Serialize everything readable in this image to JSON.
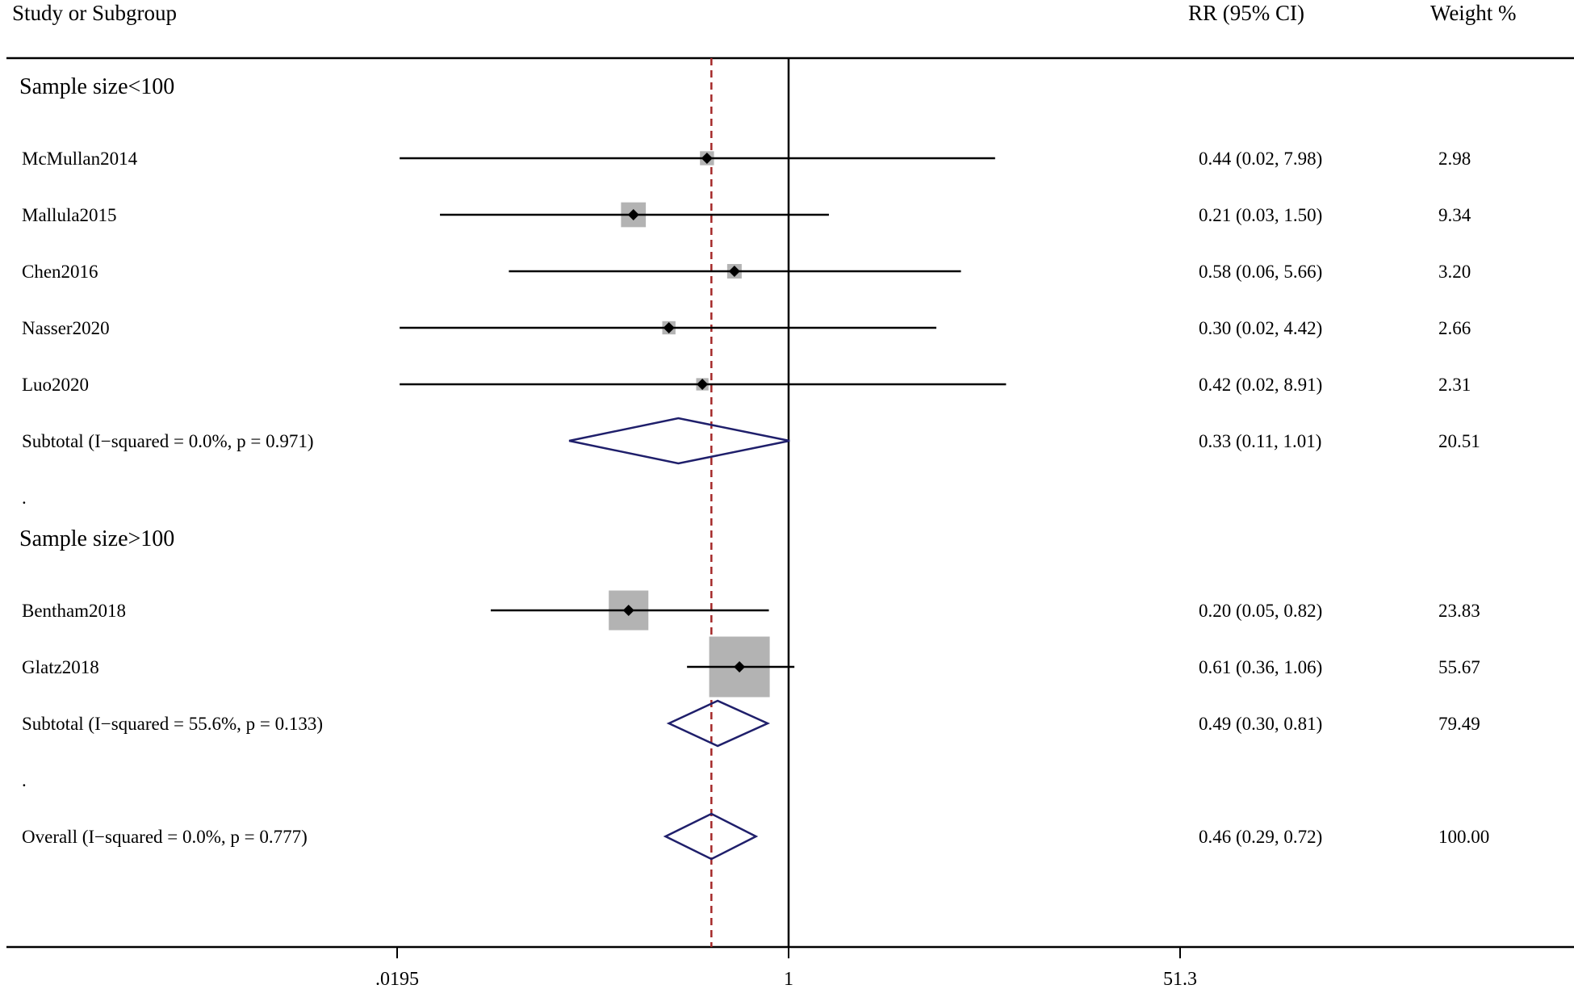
{
  "chart_data": {
    "type": "forest",
    "scale": "log",
    "effect_measure": "RR",
    "null_value": 1,
    "pooled_estimate": 0.46,
    "xlim": [
      0.0195,
      51.3
    ],
    "xticks": [
      {
        "value": 0.0195,
        "label": ".0195"
      },
      {
        "value": 1,
        "label": "1"
      },
      {
        "value": 51.3,
        "label": "51.3"
      }
    ],
    "headers": {
      "study": "Study or Subgroup",
      "estimate": "RR (95% CI)",
      "weight": "Weight %"
    },
    "colors": {
      "line": "#000000",
      "box": "#b3b3b3",
      "diamond": "#1f1f6b",
      "pooled_line": "#a52a2a"
    },
    "rows": [
      {
        "kind": "group",
        "label": "Sample size<100"
      },
      {
        "kind": "study",
        "label": "McMullan2014",
        "rr": 0.44,
        "lo": 0.02,
        "hi": 7.98,
        "text": "0.44 (0.02, 7.98)",
        "weight": 2.98,
        "weight_text": "2.98"
      },
      {
        "kind": "study",
        "label": "Mallula2015",
        "rr": 0.21,
        "lo": 0.03,
        "hi": 1.5,
        "text": "0.21 (0.03, 1.50)",
        "weight": 9.34,
        "weight_text": "9.34"
      },
      {
        "kind": "study",
        "label": "Chen2016",
        "rr": 0.58,
        "lo": 0.06,
        "hi": 5.66,
        "text": "0.58 (0.06, 5.66)",
        "weight": 3.2,
        "weight_text": "3.20"
      },
      {
        "kind": "study",
        "label": "Nasser2020",
        "rr": 0.3,
        "lo": 0.02,
        "hi": 4.42,
        "text": "0.30 (0.02, 4.42)",
        "weight": 2.66,
        "weight_text": "2.66"
      },
      {
        "kind": "study",
        "label": "Luo2020",
        "rr": 0.42,
        "lo": 0.02,
        "hi": 8.91,
        "text": "0.42 (0.02, 8.91)",
        "weight": 2.31,
        "weight_text": "2.31"
      },
      {
        "kind": "subtotal",
        "label": "Subtotal  (I−squared = 0.0%, p = 0.971)",
        "rr": 0.33,
        "lo": 0.11,
        "hi": 1.01,
        "text": "0.33 (0.11, 1.01)",
        "weight": 20.51,
        "weight_text": "20.51"
      },
      {
        "kind": "spacer",
        "label": "."
      },
      {
        "kind": "group",
        "label": "Sample size>100"
      },
      {
        "kind": "study",
        "label": "Bentham2018",
        "rr": 0.2,
        "lo": 0.05,
        "hi": 0.82,
        "text": "0.20 (0.05, 0.82)",
        "weight": 23.83,
        "weight_text": "23.83"
      },
      {
        "kind": "study",
        "label": "Glatz2018",
        "rr": 0.61,
        "lo": 0.36,
        "hi": 1.06,
        "text": "0.61 (0.36, 1.06)",
        "weight": 55.67,
        "weight_text": "55.67"
      },
      {
        "kind": "subtotal",
        "label": "Subtotal  (I−squared = 55.6%, p = 0.133)",
        "rr": 0.49,
        "lo": 0.3,
        "hi": 0.81,
        "text": "0.49 (0.30, 0.81)",
        "weight": 79.49,
        "weight_text": "79.49"
      },
      {
        "kind": "spacer",
        "label": "."
      },
      {
        "kind": "overall",
        "label": "Overall  (I−squared = 0.0%, p = 0.777)",
        "rr": 0.46,
        "lo": 0.29,
        "hi": 0.72,
        "text": "0.46 (0.29, 0.72)",
        "weight": 100.0,
        "weight_text": "100.00"
      }
    ]
  }
}
